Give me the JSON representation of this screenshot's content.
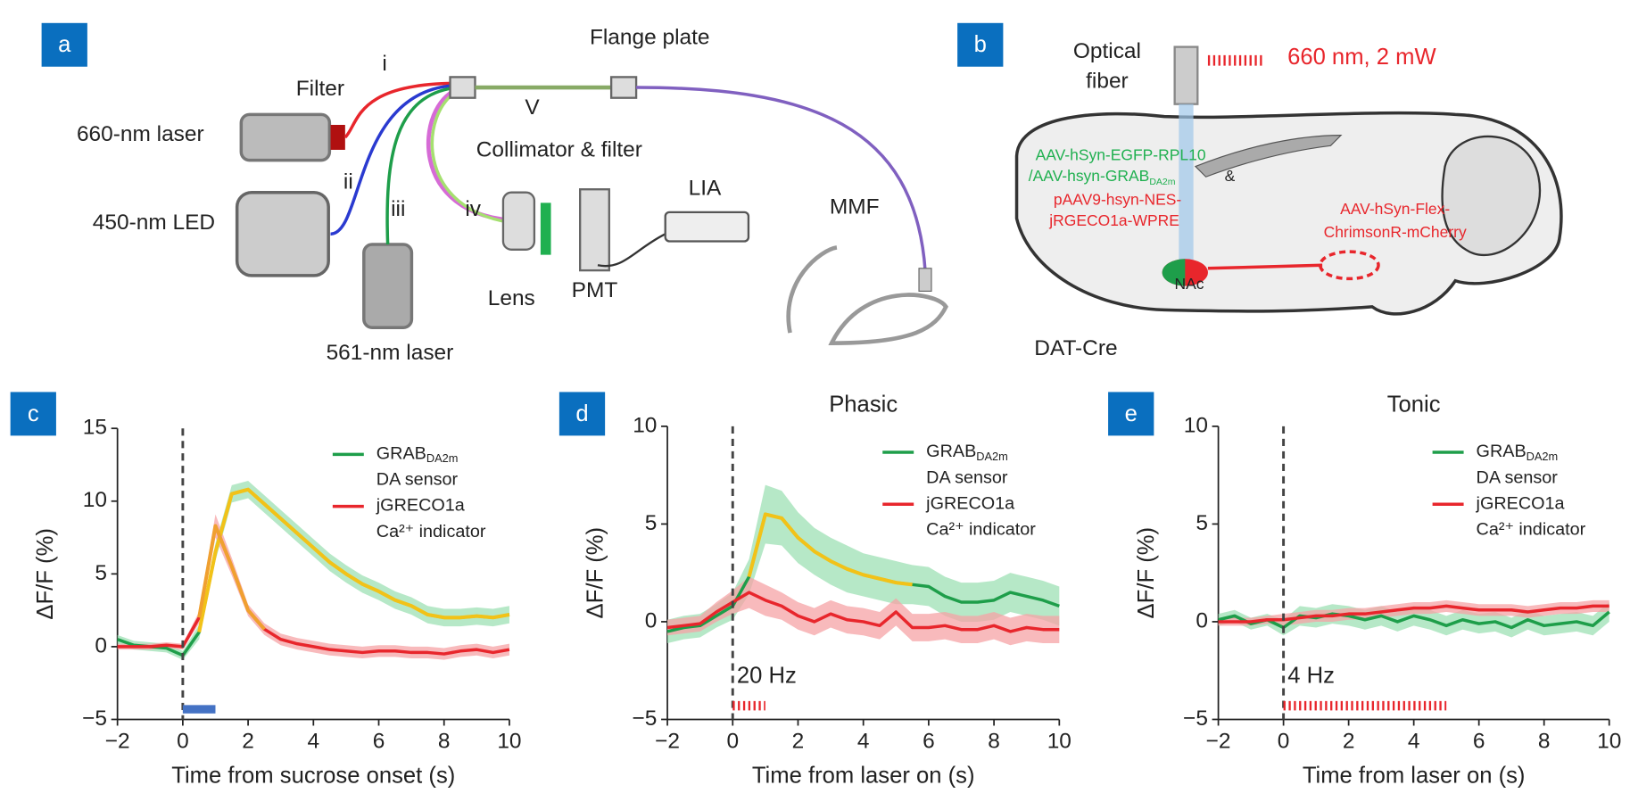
{
  "panel_labels": [
    "a",
    "b",
    "c",
    "d",
    "e"
  ],
  "diagram_a": {
    "labels": [
      "Flange plate",
      "i",
      "Filter",
      "660-nm laser",
      "ii",
      "450-nm LED",
      "iii",
      "iv",
      "V",
      "Collimator & filter",
      "LIA",
      "MMF",
      "Lens",
      "PMT",
      "561-nm laser"
    ]
  },
  "diagram_b": {
    "labels": [
      "Optical",
      "fiber",
      "660 nm, 2 mW",
      "AAV-hSyn-EGFP-RPL10",
      "/AAV-hsyn-GRAB",
      "DA2m",
      "&",
      "pAAV9-hsyn-NES-",
      "jRGECO1a-WPRE",
      "NAc",
      "AAV-hSyn-Flex-",
      "ChrimsonR-mCherry",
      "DAT-Cre"
    ]
  },
  "chart_data": [
    {
      "type": "line",
      "xlabel": "Time from sucrose onset (s)",
      "ylabel": "ΔF/F (%)",
      "xlim": [
        -2,
        10
      ],
      "ylim": [
        -5,
        15
      ],
      "xticks": [
        {
          "value": -2,
          "label": "−2"
        },
        0,
        2,
        4,
        6,
        8,
        10
      ],
      "yticks": [
        {
          "value": -5,
          "label": "−5"
        },
        0,
        5,
        10,
        15
      ],
      "vline": 0,
      "legend": "upper right",
      "stimulus": {
        "xlim": [
          0,
          1
        ],
        "y": -4.3,
        "color": "#4472c4",
        "style": "solid"
      },
      "x": [
        -2,
        -1.5,
        -1,
        -0.5,
        0,
        0.5,
        1,
        1.5,
        2,
        2.5,
        3,
        3.5,
        4,
        4.5,
        5,
        5.5,
        6,
        6.5,
        7,
        7.5,
        8,
        8.5,
        9,
        9.5,
        10
      ],
      "series": [
        {
          "name": "GRAB",
          "name_sub": "DA2m",
          "description": "DA sensor",
          "color": "#1e9e4a",
          "band_color": "#9ee0b4",
          "highlight_color": "#f2c218",
          "highlight_xlim": [
            0.5,
            10
          ],
          "values": [
            0.5,
            0.1,
            0,
            -0.1,
            -0.6,
            1.0,
            6.5,
            10.5,
            10.8,
            9.8,
            8.8,
            7.8,
            6.8,
            5.8,
            5.0,
            4.3,
            3.8,
            3.2,
            2.8,
            2.2,
            2.0,
            2.0,
            2.1,
            2.0,
            2.2
          ],
          "error": [
            0.3,
            0.3,
            0.3,
            0.3,
            0.3,
            0.5,
            0.6,
            0.6,
            0.6,
            0.6,
            0.6,
            0.6,
            0.6,
            0.6,
            0.6,
            0.6,
            0.6,
            0.6,
            0.6,
            0.6,
            0.6,
            0.6,
            0.6,
            0.6,
            0.6
          ]
        },
        {
          "name": "jGRECO1a",
          "name_sub": "",
          "description": "Ca²⁺ indicator",
          "color": "#e8262c",
          "band_color": "#f5a3a6",
          "highlight_color": "#f0a030",
          "highlight_xlim": [
            0.5,
            2.5
          ],
          "values": [
            0,
            0,
            0,
            0.1,
            0,
            2,
            8.3,
            5.5,
            2.5,
            1.2,
            0.5,
            0.2,
            0,
            -0.2,
            -0.3,
            -0.4,
            -0.3,
            -0.3,
            -0.4,
            -0.4,
            -0.5,
            -0.3,
            -0.2,
            -0.4,
            -0.2
          ],
          "error": [
            0.2,
            0.2,
            0.2,
            0.2,
            0.2,
            0.4,
            0.8,
            0.6,
            0.4,
            0.4,
            0.4,
            0.4,
            0.4,
            0.4,
            0.4,
            0.4,
            0.4,
            0.4,
            0.4,
            0.4,
            0.4,
            0.4,
            0.4,
            0.4,
            0.4
          ]
        }
      ]
    },
    {
      "type": "line",
      "title": "Phasic",
      "xlabel": "Time from laser on (s)",
      "ylabel": "ΔF/F (%)",
      "xlim": [
        -2,
        10
      ],
      "ylim": [
        -5,
        10
      ],
      "xticks": [
        {
          "value": -2,
          "label": "−2"
        },
        0,
        2,
        4,
        6,
        8,
        10
      ],
      "yticks": [
        {
          "value": -5,
          "label": "−5"
        },
        0,
        5,
        10
      ],
      "vline": 0,
      "legend": "upper right",
      "stimulus": {
        "xlim": [
          0,
          1
        ],
        "y": -4.3,
        "color": "#e8262c",
        "style": "dashed",
        "label": "20 Hz"
      },
      "x": [
        -2,
        -1.5,
        -1,
        -0.5,
        0,
        0.5,
        1,
        1.5,
        2,
        2.5,
        3,
        3.5,
        4,
        4.5,
        5,
        5.5,
        6,
        6.5,
        7,
        7.5,
        8,
        8.5,
        9,
        9.5,
        10
      ],
      "series": [
        {
          "name": "GRAB",
          "name_sub": "DA2m",
          "description": "DA sensor",
          "color": "#1e9e4a",
          "band_color": "#9ee0b4",
          "highlight_color": "#f2c218",
          "highlight_xlim": [
            0.5,
            5.5
          ],
          "values": [
            -0.5,
            -0.3,
            -0.2,
            0.3,
            0.8,
            2.3,
            5.5,
            5.3,
            4.3,
            3.6,
            3.1,
            2.7,
            2.4,
            2.2,
            2.0,
            1.9,
            1.8,
            1.3,
            1.0,
            1.0,
            1.1,
            1.5,
            1.3,
            1.1,
            0.8
          ],
          "error": [
            0.6,
            0.6,
            0.6,
            0.6,
            0.7,
            0.9,
            1.5,
            1.4,
            1.3,
            1.2,
            1.2,
            1.2,
            1.1,
            1.1,
            1.1,
            1.0,
            1.0,
            1.0,
            1.0,
            1.0,
            1.0,
            1.0,
            1.0,
            1.0,
            1.0
          ]
        },
        {
          "name": "jGRECO1a",
          "name_sub": "",
          "description": "Ca²⁺ indicator",
          "color": "#e8262c",
          "band_color": "#f5a3a6",
          "values": [
            -0.3,
            -0.2,
            -0.1,
            0.5,
            1.0,
            1.5,
            1.1,
            0.8,
            0.3,
            0.0,
            0.4,
            0.1,
            0.0,
            -0.2,
            0.5,
            -0.3,
            -0.3,
            -0.2,
            -0.4,
            -0.4,
            -0.2,
            -0.5,
            -0.3,
            -0.4,
            -0.4
          ],
          "error": [
            0.4,
            0.4,
            0.4,
            0.5,
            0.6,
            0.8,
            0.8,
            0.7,
            0.7,
            0.7,
            0.7,
            0.7,
            0.7,
            0.7,
            0.7,
            0.7,
            0.7,
            0.7,
            0.7,
            0.7,
            0.7,
            0.7,
            0.7,
            0.7,
            0.7
          ]
        }
      ]
    },
    {
      "type": "line",
      "title": "Tonic",
      "xlabel": "Time from laser on (s)",
      "ylabel": "ΔF/F (%)",
      "xlim": [
        -2,
        10
      ],
      "ylim": [
        -5,
        10
      ],
      "xticks": [
        {
          "value": -2,
          "label": "−2"
        },
        0,
        2,
        4,
        6,
        8,
        10
      ],
      "yticks": [
        {
          "value": -5,
          "label": "−5"
        },
        0,
        5,
        10
      ],
      "vline": 0,
      "legend": "upper right",
      "stimulus": {
        "xlim": [
          0,
          5
        ],
        "y": -4.3,
        "color": "#e8262c",
        "style": "dashed",
        "label": "4 Hz"
      },
      "x": [
        -2,
        -1.5,
        -1,
        -0.5,
        0,
        0.5,
        1,
        1.5,
        2,
        2.5,
        3,
        3.5,
        4,
        4.5,
        5,
        5.5,
        6,
        6.5,
        7,
        7.5,
        8,
        8.5,
        9,
        9.5,
        10
      ],
      "series": [
        {
          "name": "GRAB",
          "name_sub": "DA2m",
          "description": "DA sensor",
          "color": "#1e9e4a",
          "band_color": "#9ee0b4",
          "values": [
            0.1,
            0.3,
            -0.1,
            0.1,
            -0.3,
            0.3,
            0.2,
            0.4,
            0.3,
            0.1,
            0.3,
            0.0,
            0.3,
            0.1,
            -0.2,
            0.1,
            -0.1,
            0.0,
            -0.3,
            0.1,
            -0.2,
            -0.1,
            0.0,
            -0.2,
            0.5
          ],
          "error": [
            0.3,
            0.3,
            0.3,
            0.3,
            0.4,
            0.5,
            0.5,
            0.5,
            0.5,
            0.5,
            0.5,
            0.5,
            0.5,
            0.5,
            0.5,
            0.5,
            0.5,
            0.5,
            0.5,
            0.5,
            0.5,
            0.5,
            0.5,
            0.5,
            0.5
          ]
        },
        {
          "name": "jGRECO1a",
          "name_sub": "",
          "description": "Ca²⁺ indicator",
          "color": "#e8262c",
          "band_color": "#f5a3a6",
          "values": [
            0.0,
            0.0,
            0.0,
            0.1,
            0.1,
            0.2,
            0.3,
            0.3,
            0.4,
            0.4,
            0.5,
            0.6,
            0.7,
            0.7,
            0.8,
            0.7,
            0.6,
            0.6,
            0.6,
            0.5,
            0.6,
            0.7,
            0.7,
            0.8,
            0.8
          ],
          "error": [
            0.2,
            0.2,
            0.2,
            0.2,
            0.3,
            0.3,
            0.3,
            0.3,
            0.3,
            0.3,
            0.3,
            0.3,
            0.3,
            0.3,
            0.3,
            0.3,
            0.3,
            0.3,
            0.3,
            0.3,
            0.3,
            0.3,
            0.3,
            0.3,
            0.3
          ]
        }
      ]
    }
  ]
}
